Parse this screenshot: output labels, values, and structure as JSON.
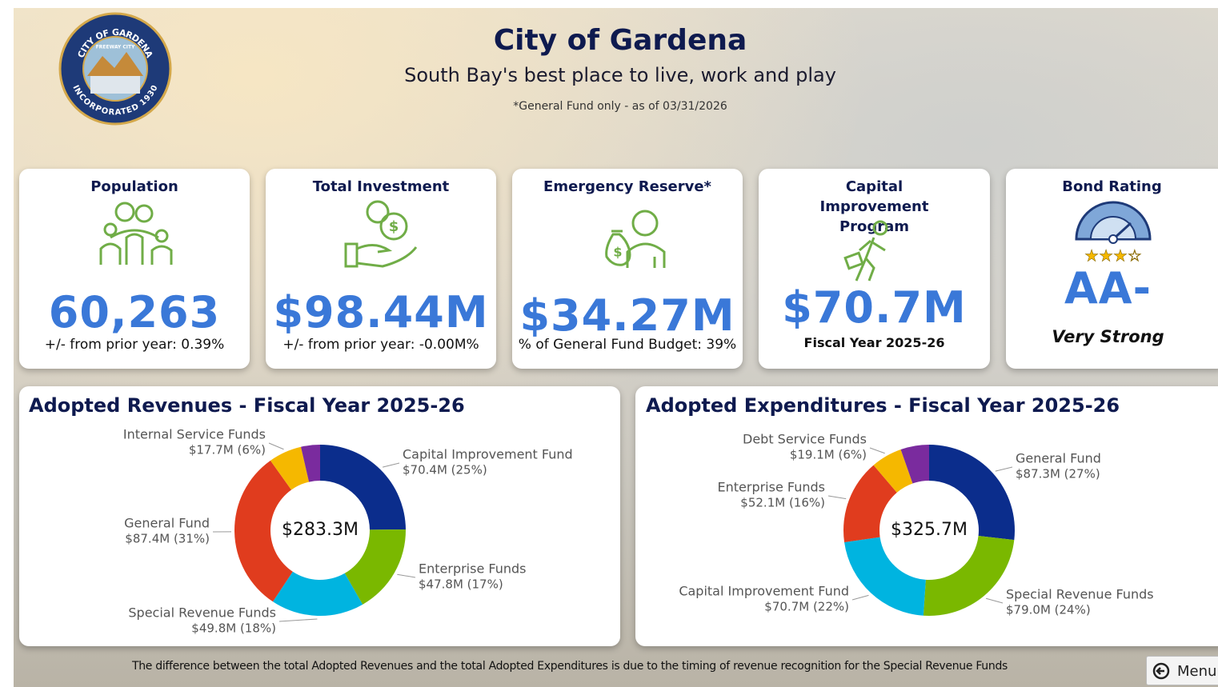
{
  "header": {
    "title": "City of Gardena",
    "subtitle": "South Bay's best place to live, work and play",
    "note": "*General Fund only - as of 03/31/2026"
  },
  "logo": {
    "top": "CITY OF GARDENA",
    "banner": "FREEWAY CITY",
    "bottom": "INCORPORATED 1930"
  },
  "cards": [
    {
      "title": "Population",
      "value": "60,263",
      "detail": "+/- from prior year: 0.39%"
    },
    {
      "title": "Total Investment",
      "value": "$98.44M",
      "detail": "+/- from prior year: -0.00M%"
    },
    {
      "title": "Emergency Reserve*",
      "value": "$34.27M",
      "detail": "% of General Fund Budget: 39%"
    },
    {
      "title": "Capital Improvement Program",
      "value": "$70.7M",
      "detail": "Fiscal Year 2025-26"
    },
    {
      "title": "Bond Rating",
      "value": "AA-",
      "detail": "Very Strong"
    }
  ],
  "charts": [
    {
      "type": "donut",
      "title": "Adopted Revenues - Fiscal Year 2025-26",
      "center_label": "$283.3M",
      "categories": [
        "Capital Improvement Fund",
        "Enterprise Funds",
        "Special Revenue Funds",
        "General Fund",
        "Internal Service Funds",
        null
      ],
      "values": [
        70.4,
        47.8,
        49.8,
        87.4,
        17.7,
        10.2
      ],
      "value_labels": [
        "$70.4M (25%)",
        "$47.8M (17%)",
        "$49.8M (18%)",
        "$87.4M (31%)",
        "$17.7M (6%)",
        null
      ],
      "colors": [
        "#0b2d8c",
        "#7ab800",
        "#00b4e0",
        "#e03c1e",
        "#f5b800",
        "#7a2b9e"
      ]
    },
    {
      "type": "donut",
      "title": "Adopted Expenditures - Fiscal Year 2025-26",
      "center_label": "$325.7M",
      "categories": [
        "General Fund",
        "Special Revenue Funds",
        "Capital Improvement Fund",
        "Enterprise Funds",
        "Debt Service Funds",
        null
      ],
      "values": [
        87.3,
        79.0,
        70.7,
        52.1,
        19.1,
        17.5
      ],
      "value_labels": [
        "$87.3M (27%)",
        "$79.0M (24%)",
        "$70.7M (22%)",
        "$52.1M (16%)",
        "$19.1M (6%)",
        null
      ],
      "colors": [
        "#0b2d8c",
        "#7ab800",
        "#00b4e0",
        "#e03c1e",
        "#f5b800",
        "#7a2b9e"
      ]
    }
  ],
  "footer": "The difference between the total Adopted Revenues and the total Adopted Expenditures is due to the timing of revenue recognition for the Special Revenue Funds",
  "menu": "Menu"
}
